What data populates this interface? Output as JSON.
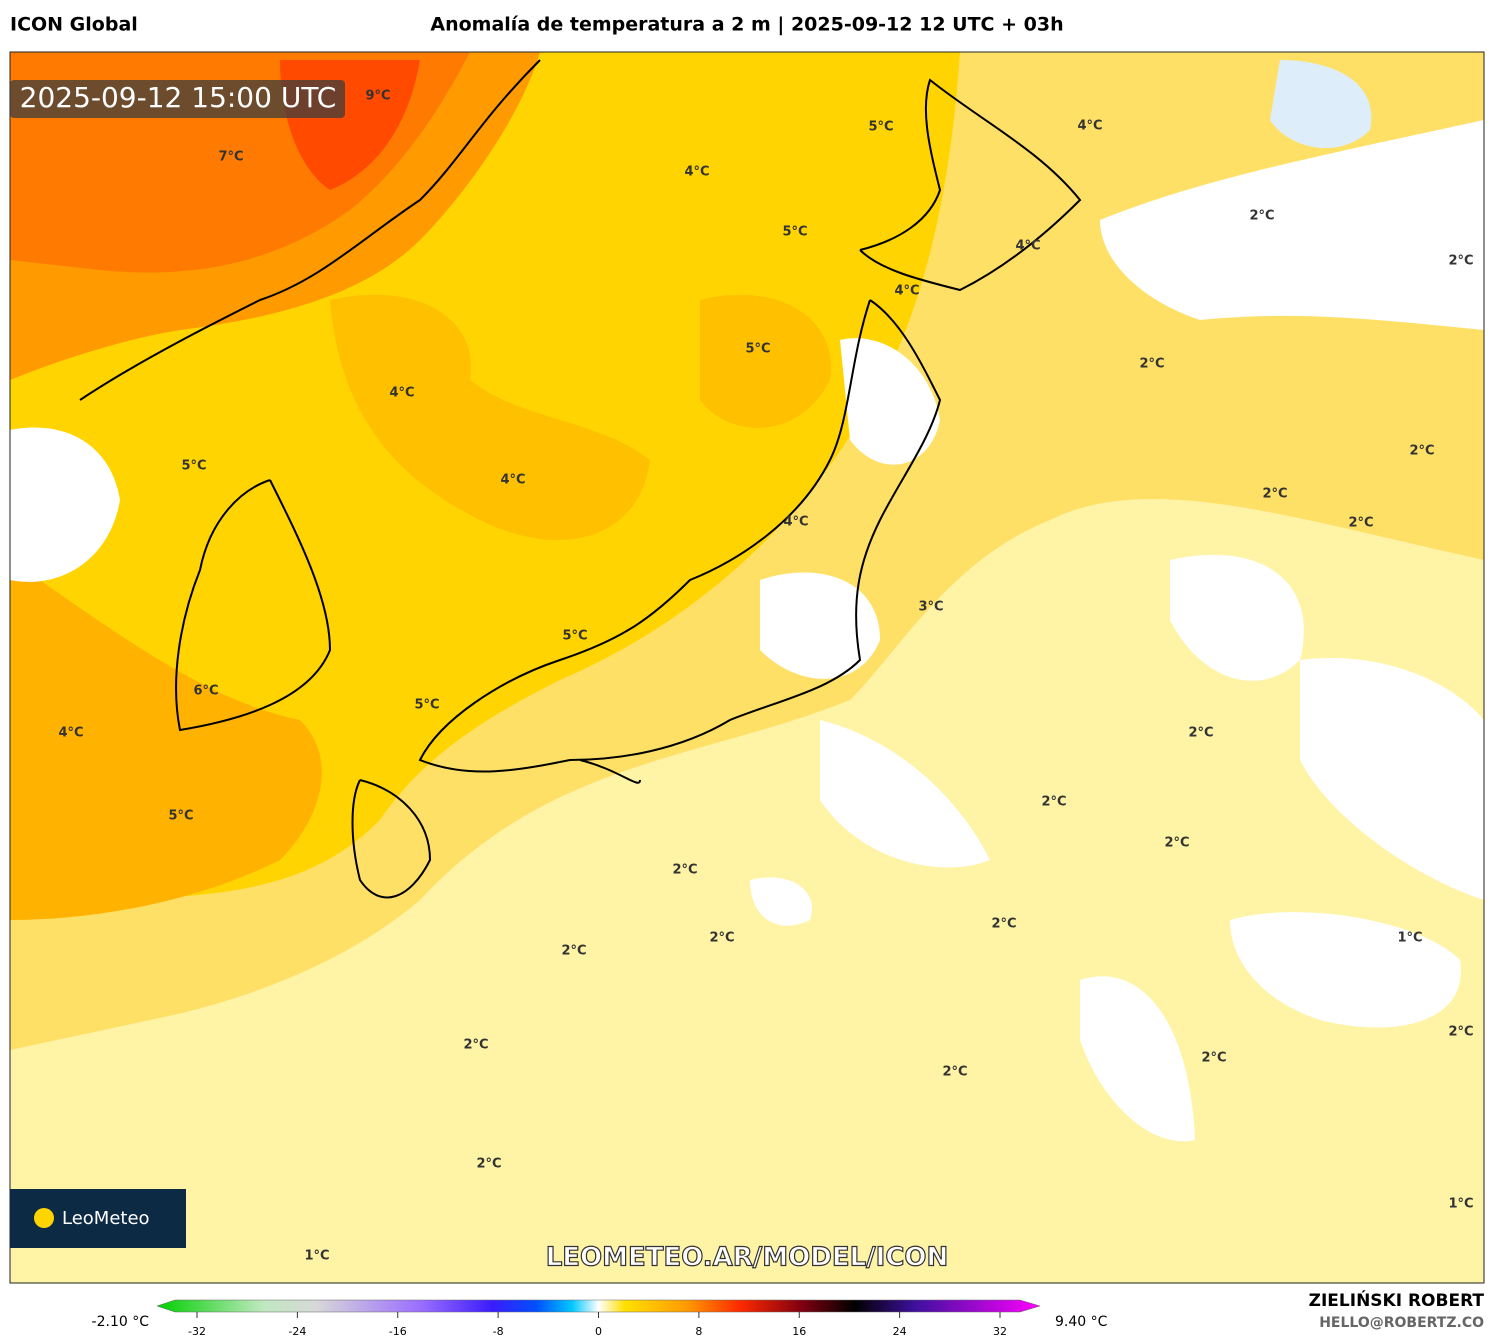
{
  "header": {
    "model": "ICON Global",
    "title": "Anomalía de temperatura a 2 m | 2025-09-12 12 UTC + 03h"
  },
  "map": {
    "timestamp": "2025-09-12 15:00 UTC",
    "watermark": "LEOMETEO.AR/MODEL/ICON",
    "logo": "LeoMeteo",
    "labels": [
      "9°C",
      "7°C",
      "5°C",
      "4°C",
      "4°C",
      "5°C",
      "4°C",
      "2°C",
      "2°C",
      "4°C",
      "5°C",
      "2°C",
      "4°C",
      "2°C",
      "5°C",
      "4°C",
      "2°C",
      "2°C",
      "4°C",
      "3°C",
      "5°C",
      "6°C",
      "5°C",
      "2°C",
      "4°C",
      "2°C",
      "5°C",
      "2°C",
      "2°C",
      "2°C",
      "2°C",
      "1°C",
      "2°C",
      "2°C",
      "2°C",
      "2°C",
      "2°C",
      "2°C",
      "1°C",
      "1°C"
    ]
  },
  "colorbar": {
    "min_label": "-2.10 °C",
    "max_label": "9.40 °C",
    "ticks": [
      -32,
      -24,
      -16,
      -8,
      0,
      8,
      16,
      24,
      32
    ]
  },
  "credits": {
    "author": "ZIELIŃSKI ROBERT",
    "email": "HELLO@ROBERTZ.CO"
  }
}
